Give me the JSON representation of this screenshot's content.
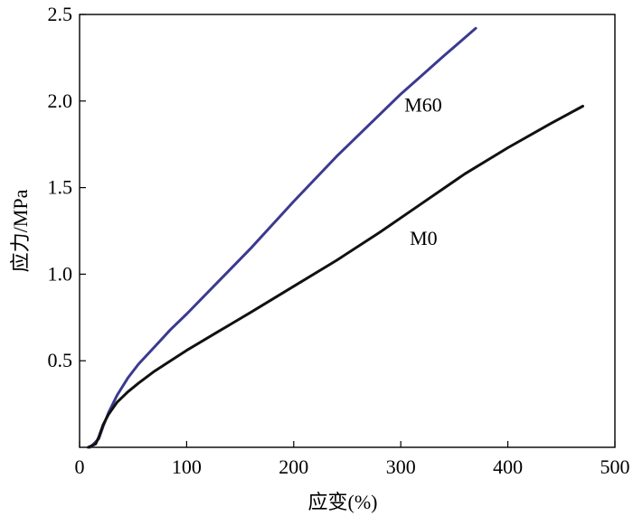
{
  "chart_data": {
    "type": "line",
    "xlabel": "应变(%)",
    "ylabel": "应力/MPa",
    "xlim": [
      0,
      500
    ],
    "ylim": [
      0,
      2.5
    ],
    "x_ticks": [
      0,
      100,
      200,
      300,
      400,
      500
    ],
    "x_tick_labels": [
      "0",
      "100",
      "200",
      "300",
      "400",
      "500"
    ],
    "y_ticks": [
      0.5,
      1.0,
      1.5,
      2.0,
      2.5
    ],
    "y_tick_labels": [
      "0.5",
      "1.0",
      "1.5",
      "2.0",
      "2.5"
    ],
    "grid": false,
    "legend": "none",
    "series": [
      {
        "name": "M60",
        "color": "#3c3a8f",
        "x": [
          10,
          18,
          22,
          27,
          35,
          45,
          55,
          70,
          85,
          100,
          130,
          160,
          200,
          240,
          270,
          300,
          320,
          340,
          355,
          370
        ],
        "y": [
          0.0,
          0.05,
          0.12,
          0.2,
          0.3,
          0.4,
          0.48,
          0.58,
          0.68,
          0.77,
          0.96,
          1.15,
          1.42,
          1.68,
          1.86,
          2.04,
          2.15,
          2.26,
          2.34,
          2.42
        ]
      },
      {
        "name": "M0",
        "color": "#111111",
        "x": [
          8,
          15,
          18,
          22,
          27,
          35,
          45,
          55,
          70,
          85,
          100,
          130,
          160,
          200,
          240,
          280,
          320,
          360,
          400,
          440,
          470
        ],
        "y": [
          0.0,
          0.02,
          0.06,
          0.13,
          0.19,
          0.26,
          0.32,
          0.37,
          0.44,
          0.5,
          0.56,
          0.67,
          0.78,
          0.93,
          1.08,
          1.24,
          1.41,
          1.58,
          1.73,
          1.87,
          1.97
        ]
      }
    ]
  }
}
